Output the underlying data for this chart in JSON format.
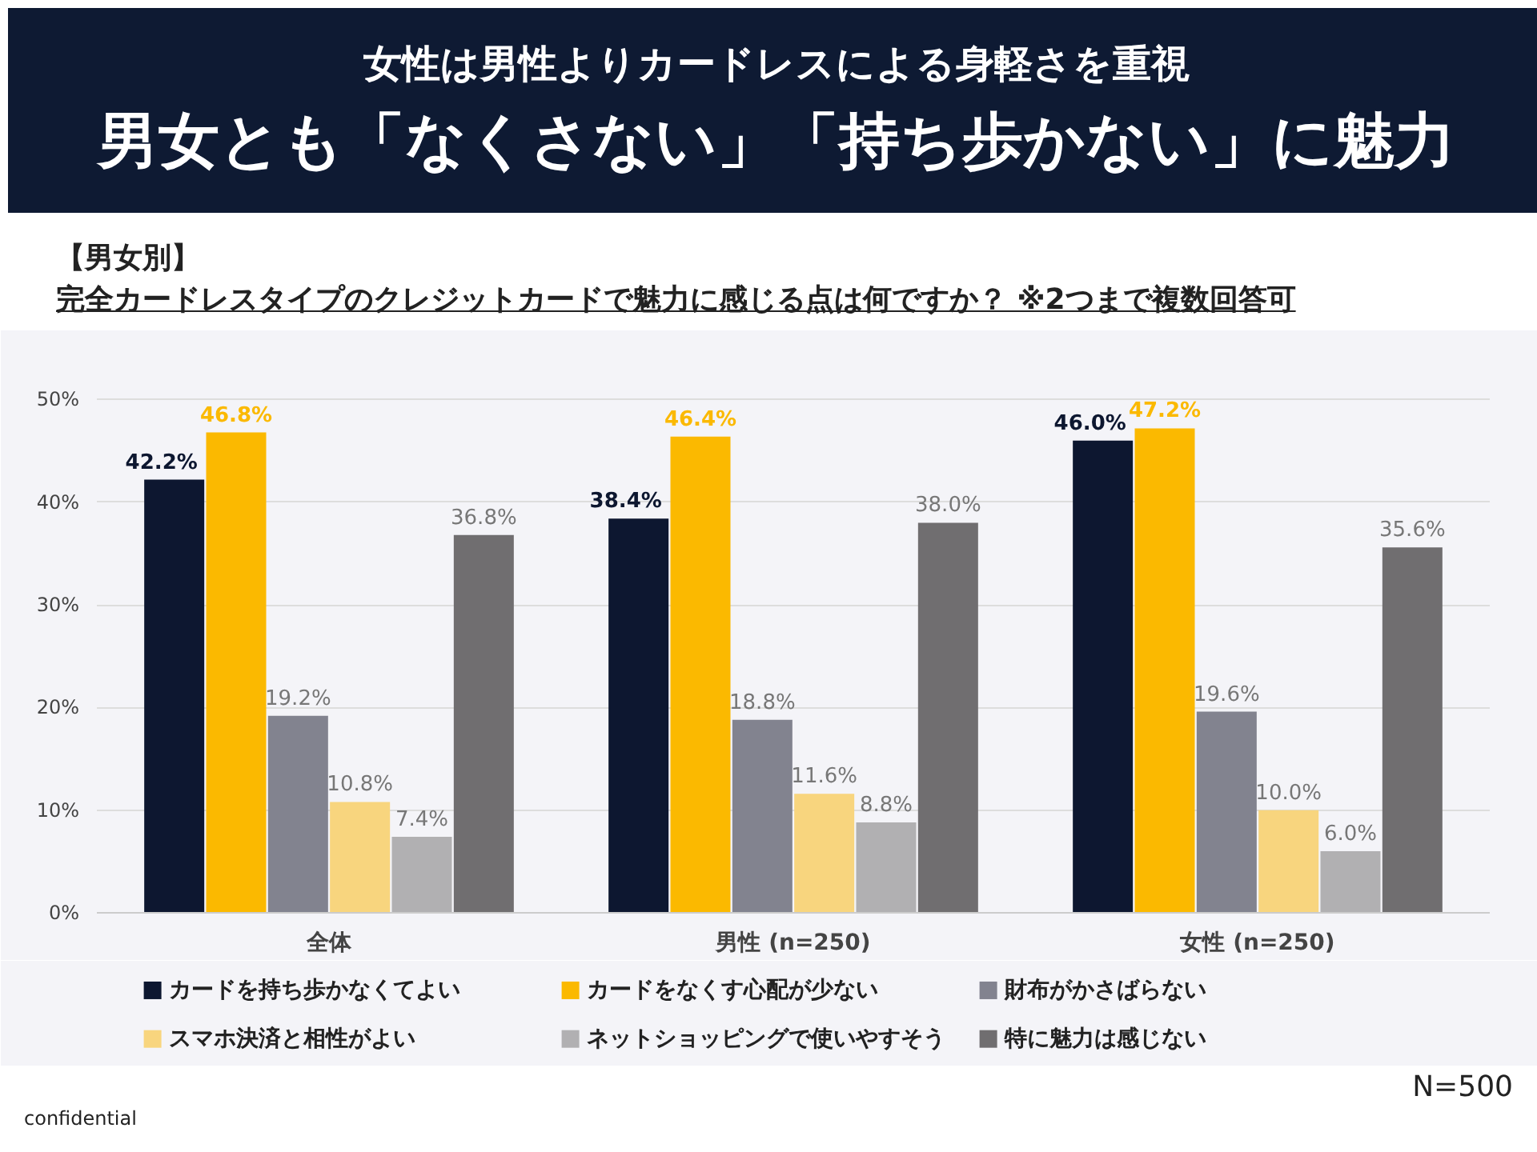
{
  "chart_data": {
    "type": "bar",
    "subtitle": "女性は男性よりカードレスによる身軽さを重視",
    "title": "男女とも「なくさない」「持ち歩かない」に魅力",
    "annotations": [
      "【男女別】",
      "完全カードレスタイプのクレジットカードで魅力に感じる点は何ですか？ ※2つまで複数回答可",
      "N=500",
      "confidential"
    ],
    "categories": [
      "全体",
      "男性 (n=250)",
      "女性 (n=250)"
    ],
    "series": [
      {
        "name": "カードを持ち歩かなくてよい",
        "color": "#0d1730",
        "values": [
          42.2,
          38.4,
          46.0
        ],
        "value_labels": [
          "42.2%",
          "38.4%",
          "46.0%"
        ]
      },
      {
        "name": "カードをなくす心配が少ない",
        "color": "#fbb900",
        "values": [
          46.8,
          46.4,
          47.2
        ],
        "value_labels": [
          "46.8%",
          "46.4%",
          "47.2%"
        ]
      },
      {
        "name": "財布がかさばらない",
        "color": "#82838f",
        "values": [
          19.2,
          18.8,
          19.6
        ],
        "value_labels": [
          "19.2%",
          "18.8%",
          "19.6%"
        ]
      },
      {
        "name": "スマホ決済と相性がよい",
        "color": "#f8d57e",
        "values": [
          10.8,
          11.6,
          10.0
        ],
        "value_labels": [
          "10.8%",
          "11.6%",
          "10.0%"
        ]
      },
      {
        "name": "ネットショッピングで使いやすそう",
        "color": "#b1b0b2",
        "values": [
          7.4,
          8.8,
          6.0
        ],
        "value_labels": [
          "7.4%",
          "8.8%",
          "6.0%"
        ]
      },
      {
        "name": "特に魅力は感じない",
        "color": "#706e70",
        "values": [
          36.8,
          38.0,
          35.6
        ],
        "value_labels": [
          "36.8%",
          "38.0%",
          "35.6%"
        ]
      }
    ],
    "ylim": [
      0,
      53
    ],
    "yticks": [
      {
        "value": 0,
        "label": "0%"
      },
      {
        "value": 10,
        "label": "10%"
      },
      {
        "value": 20,
        "label": "20%"
      },
      {
        "value": 30,
        "label": "30%"
      },
      {
        "value": 40,
        "label": "40%"
      },
      {
        "value": 50,
        "label": "50%"
      }
    ],
    "grid": "y",
    "legend": "bottom"
  }
}
